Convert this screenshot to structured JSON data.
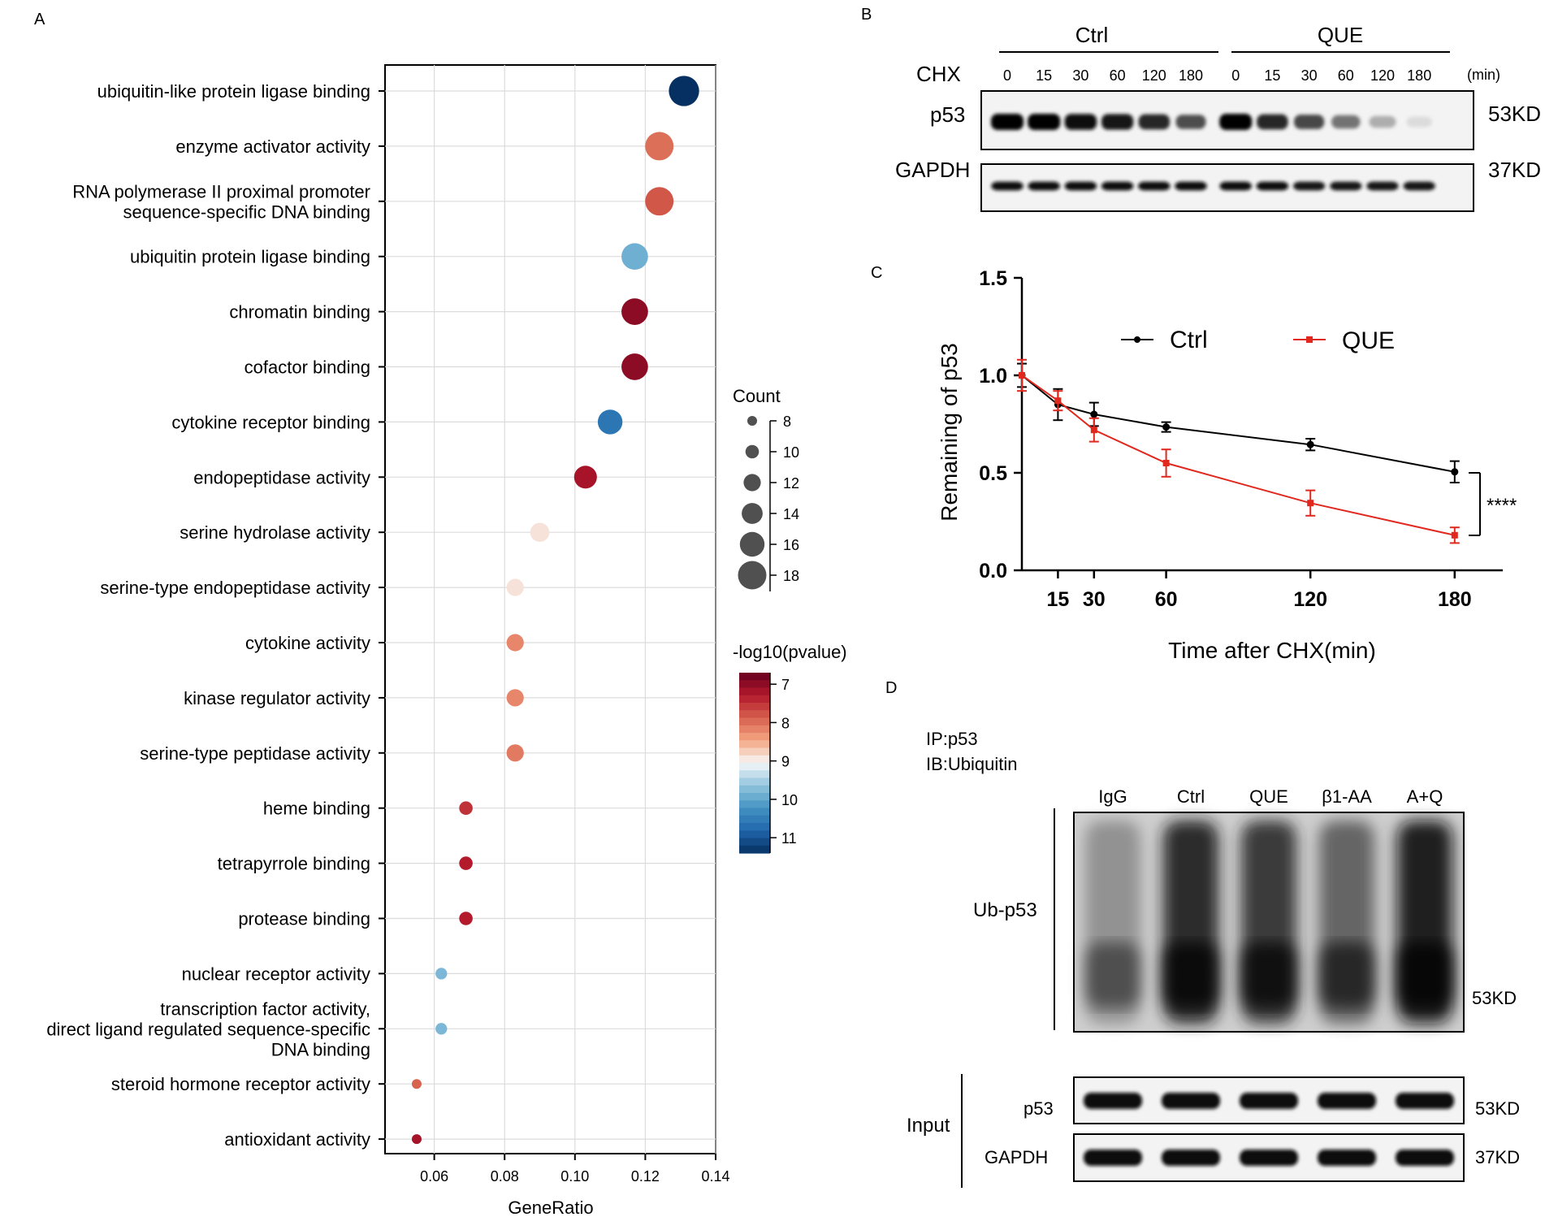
{
  "panel_labels": {
    "a": "A",
    "b": "B",
    "c": "C",
    "d": "D"
  },
  "chart_data": [
    {
      "type": "scatter",
      "panel": "A",
      "xlabel": "GeneRatio",
      "ylabel": "",
      "xlim": [
        0.046,
        0.14
      ],
      "xticks": [
        0.06,
        0.08,
        0.1,
        0.12,
        0.14
      ],
      "xtick_labels": [
        "0.06",
        "0.08",
        "0.10",
        "0.12",
        "0.14"
      ],
      "grid": true,
      "categories": [
        "ubiquitin-like protein ligase binding",
        "enzyme activator activity",
        "RNA polymerase II proximal promoter|sequence-specific DNA binding",
        "ubiquitin protein ligase binding",
        "chromatin binding",
        "cofactor binding",
        "cytokine receptor binding",
        "endopeptidase activity",
        "serine hydrolase activity",
        "serine-type endopeptidase activity",
        "cytokine activity",
        "kinase regulator activity",
        "serine-type peptidase activity",
        "heme binding",
        "tetrapyrrole binding",
        "protease binding",
        "nuclear receptor activity",
        "transcription factor activity,|direct ligand regulated sequence-specific|DNA binding",
        "steroid hormone receptor activity",
        "antioxidant activity"
      ],
      "gene_ratio": [
        0.131,
        0.124,
        0.124,
        0.117,
        0.117,
        0.117,
        0.11,
        0.103,
        0.09,
        0.083,
        0.083,
        0.083,
        0.083,
        0.069,
        0.069,
        0.069,
        0.062,
        0.062,
        0.055,
        0.055
      ],
      "count": [
        19,
        18,
        18,
        17,
        17,
        17,
        16,
        15,
        13,
        12,
        12,
        12,
        12,
        10,
        10,
        10,
        9,
        9,
        8,
        8
      ],
      "neg_log10_pvalue": [
        11.4,
        8.0,
        7.8,
        9.9,
        7.0,
        7.0,
        10.6,
        7.2,
        8.9,
        8.9,
        8.2,
        8.2,
        8.1,
        7.5,
        7.3,
        7.3,
        9.8,
        9.8,
        7.9,
        7.2
      ],
      "size_legend": {
        "title": "Count",
        "values": [
          8,
          10,
          12,
          14,
          16,
          18
        ],
        "labels": [
          "8",
          "10",
          "12",
          "14",
          "16",
          "18"
        ]
      },
      "color_legend": {
        "title": "-log10(pvalue)",
        "range": [
          6.7,
          11.4
        ],
        "ticks": [
          7,
          8,
          9,
          10,
          11
        ],
        "labels": [
          "7",
          "8",
          "9",
          "10",
          "11"
        ],
        "colors_low_to_high": [
          "#67001f",
          "#b2182b",
          "#d6604d",
          "#f4a582",
          "#f7f7f7",
          "#92c5de",
          "#4393c3",
          "#2166ac",
          "#053061"
        ]
      }
    },
    {
      "type": "line",
      "panel": "C",
      "xlabel": "Time after CHX(min)",
      "ylabel": "Remaining of p53",
      "x": [
        0,
        15,
        30,
        60,
        120,
        180
      ],
      "xticks": [
        15,
        30,
        60,
        120,
        180
      ],
      "xtick_labels": [
        "15",
        "30",
        "60",
        "120",
        "180"
      ],
      "xlim": [
        0,
        200
      ],
      "ylim": [
        0,
        1.5
      ],
      "yticks": [
        0.0,
        0.5,
        1.0,
        1.5
      ],
      "ytick_labels": [
        "0.0",
        "0.5",
        "1.0",
        "1.5"
      ],
      "series": [
        {
          "name": "Ctrl",
          "color": "#000000",
          "marker": "circle",
          "values": [
            1.0,
            0.85,
            0.8,
            0.735,
            0.645,
            0.505
          ],
          "errors": [
            0.06,
            0.08,
            0.06,
            0.025,
            0.03,
            0.055
          ]
        },
        {
          "name": "QUE",
          "color": "#e0281e",
          "marker": "square",
          "values": [
            1.0,
            0.87,
            0.72,
            0.55,
            0.345,
            0.18
          ],
          "errors": [
            0.08,
            0.05,
            0.06,
            0.07,
            0.065,
            0.04
          ]
        }
      ],
      "annotation": "****",
      "legend_position": "top"
    }
  ],
  "blot_b": {
    "groups": [
      "Ctrl",
      "QUE"
    ],
    "chx_label": "CHX",
    "times": [
      "0",
      "15",
      "30",
      "60",
      "120",
      "180",
      "0",
      "15",
      "30",
      "60",
      "120",
      "180"
    ],
    "unit_label": "(min)",
    "rows": [
      {
        "label": "p53",
        "kd": "53KD",
        "intensities": [
          1.0,
          1.0,
          0.95,
          0.92,
          0.85,
          0.7,
          1.0,
          0.85,
          0.72,
          0.55,
          0.32,
          0.14
        ]
      },
      {
        "label": "GAPDH",
        "kd": "37KD",
        "intensities": [
          0.95,
          0.95,
          0.95,
          0.95,
          0.95,
          0.95,
          0.95,
          0.95,
          0.92,
          0.92,
          0.92,
          0.92
        ]
      }
    ]
  },
  "blot_d": {
    "ip_label": "IP:p53",
    "ib_label": "IB:Ubiquitin",
    "lanes": [
      "IgG",
      "Ctrl",
      "QUE",
      "β1-AA",
      "A+Q"
    ],
    "ub_label": "Ub-p53",
    "ub_kd": "53KD",
    "ub_intensities": [
      0.35,
      0.85,
      0.8,
      0.6,
      0.9
    ],
    "input_label": "Input",
    "input_rows": [
      {
        "label": "p53",
        "kd": "53KD"
      },
      {
        "label": "GAPDH",
        "kd": "37KD"
      }
    ]
  }
}
